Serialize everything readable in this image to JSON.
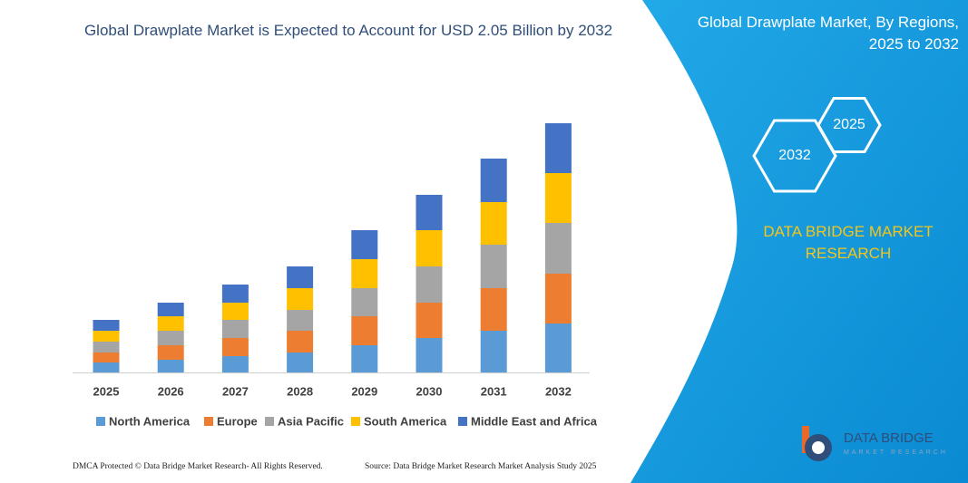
{
  "chart_data": {
    "type": "stacked_bar",
    "title": "Global Drawplate Market is Expected to Account for USD 2.05 Billion by 2032",
    "categories": [
      "2025",
      "2026",
      "2027",
      "2028",
      "2029",
      "2030",
      "2031",
      "2032"
    ],
    "series": [
      {
        "name": "North America",
        "color": "#5b9bd5",
        "values": [
          11,
          14,
          18,
          22,
          30,
          38,
          46,
          54
        ]
      },
      {
        "name": "Europe",
        "color": "#ed7d31",
        "values": [
          11,
          16,
          20,
          24,
          32,
          39,
          47,
          55
        ]
      },
      {
        "name": "Asia Pacific",
        "color": "#a5a5a5",
        "values": [
          12,
          16,
          20,
          23,
          31,
          40,
          48,
          56
        ]
      },
      {
        "name": "South America",
        "color": "#ffc000",
        "values": [
          12,
          16,
          19,
          24,
          32,
          40,
          47,
          55
        ]
      },
      {
        "name": "Middle East and Africa",
        "color": "#4472c4",
        "values": [
          12,
          15,
          20,
          24,
          32,
          39,
          48,
          55
        ]
      }
    ]
  },
  "panel": {
    "title": "Global Drawplate Market, By Regions, 2025 to 2032",
    "hexagon_right": "2025",
    "hexagon_left": "2032",
    "brand": "DATA BRIDGE MARKET RESEARCH"
  },
  "logo": {
    "name": "DATA BRIDGE",
    "tagline": "MARKET RESEARCH"
  },
  "footer": {
    "copyright": "DMCA Protected © Data Bridge Market Research-  All Rights Reserved.",
    "source": "Source: Data Bridge Market Research  Market Analysis Study 2025"
  }
}
